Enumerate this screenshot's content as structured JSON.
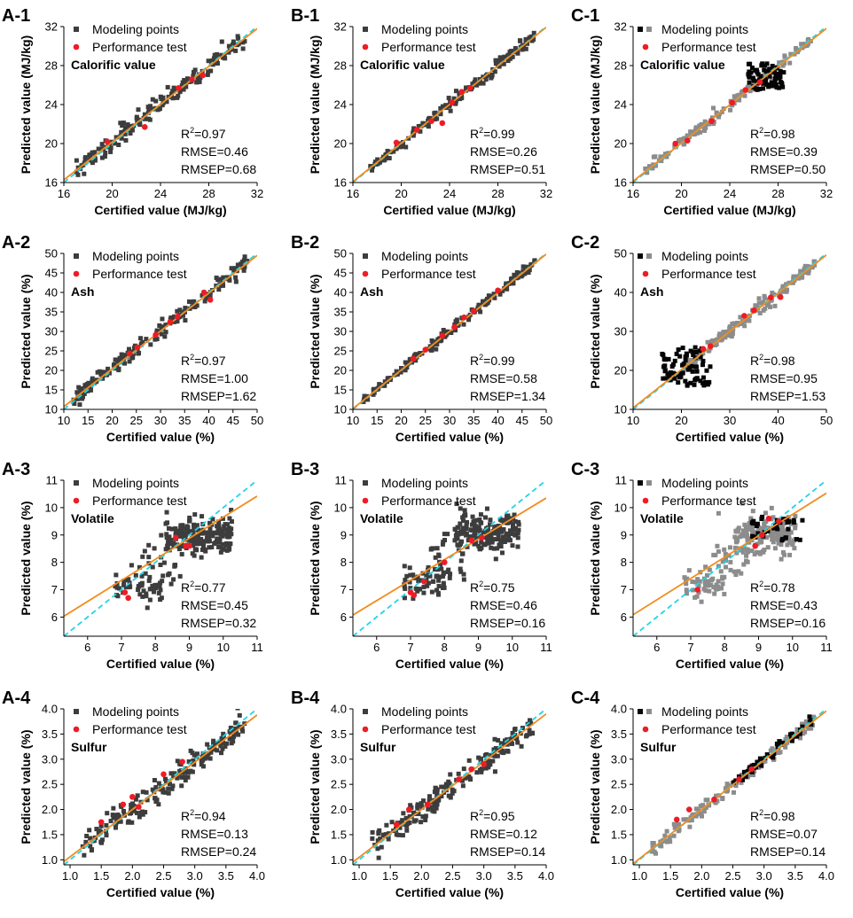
{
  "colors": {
    "model_dark": "#3d3d3d",
    "model_gray": "#8c8c8c",
    "model_black": "#050505",
    "test": "#ee1c25",
    "fit": "#f28c1f",
    "ideal": "#21d4e8"
  },
  "chart_data": [
    {
      "id": "A-1",
      "panel_label": "A-1",
      "type": "scatter",
      "title": "Calorific value",
      "xlabel": "Certified value (MJ/kg)",
      "ylabel": "Predicted value (MJ/kg)",
      "xlim": [
        16,
        32
      ],
      "ylim": [
        16,
        32
      ],
      "xticks": [
        16,
        20,
        24,
        28,
        32
      ],
      "yticks": [
        16,
        20,
        24,
        28,
        32
      ],
      "legend": {
        "modeling": "Modeling points",
        "test": "Performance test"
      },
      "stats": {
        "r2_label": "R",
        "r2_sup": "2",
        "r2_value": "=0.97",
        "rmse": "RMSE=0.46",
        "rmsep": "RMSEP=0.68"
      },
      "fit": {
        "slope": 0.97,
        "intercept": 0.75
      },
      "model_style": "dark",
      "model_points": {
        "cluster": [
          {
            "n": 170,
            "range": [
              17,
              31
            ],
            "spread": 0.5
          }
        ]
      },
      "test_points": [
        [
          19.6,
          20.2
        ],
        [
          22.7,
          21.7
        ],
        [
          25.5,
          25.7
        ],
        [
          26.6,
          26.6
        ],
        [
          27.5,
          27.0
        ]
      ]
    },
    {
      "id": "B-1",
      "panel_label": "B-1",
      "type": "scatter",
      "title": "Calorific value",
      "xlabel": "Certified value (MJ/kg)",
      "ylabel": "Predicted value (MJ/kg)",
      "xlim": [
        16,
        32
      ],
      "ylim": [
        16,
        32
      ],
      "xticks": [
        16,
        20,
        24,
        28,
        32
      ],
      "yticks": [
        16,
        20,
        24,
        28,
        32
      ],
      "legend": {
        "modeling": "Modeling points",
        "test": "Performance test"
      },
      "stats": {
        "r2_label": "R",
        "r2_sup": "2",
        "r2_value": "=0.99",
        "rmse": "RMSE=0.26",
        "rmsep": "RMSEP=0.51"
      },
      "fit": {
        "slope": 0.99,
        "intercept": 0.25
      },
      "model_style": "dark",
      "model_points": {
        "cluster": [
          {
            "n": 170,
            "range": [
              17,
              31
            ],
            "spread": 0.3
          }
        ]
      },
      "test_points": [
        [
          19.6,
          20.1
        ],
        [
          21.3,
          21.4
        ],
        [
          22.5,
          22.3
        ],
        [
          23.4,
          22.1
        ],
        [
          24.2,
          24.2
        ],
        [
          25.0,
          25.3
        ],
        [
          25.7,
          25.7
        ]
      ]
    },
    {
      "id": "C-1",
      "panel_label": "C-1",
      "type": "scatter",
      "title": "Calorific value",
      "xlabel": "Certified value (MJ/kg)",
      "ylabel": "Predicted value (MJ/kg)",
      "xlim": [
        16,
        32
      ],
      "ylim": [
        16,
        32
      ],
      "xticks": [
        16,
        20,
        24,
        28,
        32
      ],
      "yticks": [
        16,
        20,
        24,
        28,
        32
      ],
      "legend": {
        "modeling": "Modeling points",
        "test": "Performance test"
      },
      "stats": {
        "r2_label": "R",
        "r2_sup": "2",
        "r2_value": "=0.98",
        "rmse": "RMSE=0.39",
        "rmsep": "RMSEP=0.50"
      },
      "fit": {
        "slope": 0.98,
        "intercept": 0.45
      },
      "model_style": "gray-black",
      "model_points": {
        "cluster": [
          {
            "n": 150,
            "range": [
              17,
              31
            ],
            "spread": 0.3
          }
        ],
        "black": {
          "n": 70,
          "xrange": [
            25.5,
            28.5
          ],
          "yrange": [
            25.5,
            28.2
          ]
        }
      },
      "test_points": [
        [
          19.5,
          20.0
        ],
        [
          20.5,
          20.3
        ],
        [
          22.5,
          22.3
        ],
        [
          24.2,
          24.2
        ],
        [
          25.3,
          25.5
        ],
        [
          26.5,
          26.3
        ]
      ]
    },
    {
      "id": "A-2",
      "panel_label": "A-2",
      "type": "scatter",
      "title": "Ash",
      "xlabel": "Certified value (%)",
      "ylabel": "Predicted value (%)",
      "xlim": [
        10,
        50
      ],
      "ylim": [
        10,
        50
      ],
      "xticks": [
        10,
        15,
        20,
        25,
        30,
        35,
        40,
        45,
        50
      ],
      "yticks": [
        10,
        15,
        20,
        25,
        30,
        35,
        40,
        45,
        50
      ],
      "legend": {
        "modeling": "Modeling points",
        "test": "Performance test"
      },
      "stats": {
        "r2_label": "R",
        "r2_sup": "2",
        "r2_value": "=0.97",
        "rmse": "RMSE=1.00",
        "rmsep": "RMSEP=1.62"
      },
      "fit": {
        "slope": 0.97,
        "intercept": 1.0
      },
      "model_style": "dark",
      "model_points": {
        "cluster": [
          {
            "n": 180,
            "range": [
              12,
              48
            ],
            "spread": 1.1
          }
        ]
      },
      "test_points": [
        [
          23.6,
          24.3
        ],
        [
          25.2,
          25.9
        ],
        [
          29.0,
          29.1
        ],
        [
          32.0,
          32.4
        ],
        [
          33.5,
          33.8
        ],
        [
          39.0,
          40.0
        ],
        [
          40.3,
          38.1
        ]
      ]
    },
    {
      "id": "B-2",
      "panel_label": "B-2",
      "type": "scatter",
      "title": "Ash",
      "xlabel": "Certified value (%)",
      "ylabel": "Predicted value (%)",
      "xlim": [
        10,
        50
      ],
      "ylim": [
        10,
        50
      ],
      "xticks": [
        10,
        15,
        20,
        25,
        30,
        35,
        40,
        45,
        50
      ],
      "yticks": [
        10,
        15,
        20,
        25,
        30,
        35,
        40,
        45,
        50
      ],
      "legend": {
        "modeling": "Modeling points",
        "test": "Performance test"
      },
      "stats": {
        "r2_label": "R",
        "r2_sup": "2",
        "r2_value": "=0.99",
        "rmse": "RMSE=0.58",
        "rmsep": "RMSEP=1.34"
      },
      "fit": {
        "slope": 0.99,
        "intercept": 0.3
      },
      "model_style": "dark",
      "model_points": {
        "cluster": [
          {
            "n": 180,
            "range": [
              12,
              48
            ],
            "spread": 0.6
          }
        ]
      },
      "test_points": [
        [
          22.5,
          23.0
        ],
        [
          25.0,
          25.3
        ],
        [
          28.5,
          28.9
        ],
        [
          31.0,
          31.1
        ],
        [
          33.0,
          33.6
        ],
        [
          35.0,
          35.2
        ],
        [
          40.0,
          40.5
        ]
      ]
    },
    {
      "id": "C-2",
      "panel_label": "C-2",
      "type": "scatter",
      "title": "Ash",
      "xlabel": "Certified value (%)",
      "ylabel": "Predicted value (%)",
      "xlim": [
        10,
        50
      ],
      "ylim": [
        10,
        50
      ],
      "xticks": [
        10,
        20,
        30,
        40,
        50
      ],
      "yticks": [
        10,
        20,
        30,
        40,
        50
      ],
      "legend": {
        "modeling": "Modeling points",
        "test": "Performance test"
      },
      "stats": {
        "r2_label": "R",
        "r2_sup": "2",
        "r2_value": "=0.98",
        "rmse": "RMSE=0.95",
        "rmsep": "RMSEP=1.53"
      },
      "fit": {
        "slope": 0.98,
        "intercept": 0.6
      },
      "model_style": "gray-black",
      "model_points": {
        "cluster": [
          {
            "n": 170,
            "range": [
              20,
              48
            ],
            "spread": 0.8
          }
        ],
        "black": {
          "n": 80,
          "xrange": [
            16,
            26
          ],
          "yrange": [
            16,
            26
          ]
        }
      },
      "test_points": [
        [
          24.5,
          25.5
        ],
        [
          26.0,
          26.2
        ],
        [
          33.0,
          34.0
        ],
        [
          35.0,
          35.4
        ],
        [
          38.5,
          38.7
        ],
        [
          40.5,
          38.8
        ]
      ]
    },
    {
      "id": "A-3",
      "panel_label": "A-3",
      "type": "scatter",
      "title": "Volatile",
      "xlabel": "Certified value (%)",
      "ylabel": "Predicted value (%)",
      "xlim": [
        5.3,
        11
      ],
      "ylim": [
        5.3,
        11
      ],
      "xticks": [
        6,
        7,
        8,
        9,
        10,
        11
      ],
      "yticks": [
        6,
        7,
        8,
        9,
        10,
        11
      ],
      "legend": {
        "modeling": "Modeling points",
        "test": "Performance test"
      },
      "stats": {
        "r2_label": "R",
        "r2_sup": "2",
        "r2_value": "=0.77",
        "rmse": "RMSE=0.45",
        "rmsep": "RMSEP=0.32"
      },
      "fit": {
        "slope": 0.77,
        "intercept": 1.95
      },
      "model_style": "dark",
      "model_points": {
        "cluster": [
          {
            "n": 180,
            "xrange": [
              8.3,
              10.3
            ],
            "ycenter": 9.0,
            "yspread": 0.35
          },
          {
            "n": 50,
            "xrange": [
              6.8,
              8.2
            ],
            "ycenter": 7.15,
            "yspread": 0.3
          },
          {
            "n": 30,
            "xrange": [
              7.6,
              8.8
            ],
            "ycenter": 7.9,
            "yspread": 0.5
          }
        ]
      },
      "test_points": [
        [
          7.1,
          6.9
        ],
        [
          7.2,
          6.7
        ],
        [
          8.6,
          8.9
        ],
        [
          8.9,
          8.6
        ],
        [
          9.0,
          8.6
        ]
      ]
    },
    {
      "id": "B-3",
      "panel_label": "B-3",
      "type": "scatter",
      "title": "Volatile",
      "xlabel": "Certified value (%)",
      "ylabel": "Predicted value (%)",
      "xlim": [
        5.3,
        11
      ],
      "ylim": [
        5.3,
        11
      ],
      "xticks": [
        6,
        7,
        8,
        9,
        10,
        11
      ],
      "yticks": [
        6,
        7,
        8,
        9,
        10,
        11
      ],
      "legend": {
        "modeling": "Modeling points",
        "test": "Performance test"
      },
      "stats": {
        "r2_label": "R",
        "r2_sup": "2",
        "r2_value": "=0.75",
        "rmse": "RMSE=0.46",
        "rmsep": "RMSEP=0.16"
      },
      "fit": {
        "slope": 0.75,
        "intercept": 2.1
      },
      "model_style": "dark",
      "model_points": {
        "cluster": [
          {
            "n": 180,
            "xrange": [
              8.3,
              10.2
            ],
            "ycenter": 9.1,
            "yspread": 0.35
          },
          {
            "n": 50,
            "xrange": [
              6.8,
              8.0
            ],
            "ycenter": 7.25,
            "yspread": 0.3
          },
          {
            "n": 30,
            "xrange": [
              7.6,
              8.6
            ],
            "ycenter": 8.0,
            "yspread": 0.5
          }
        ]
      },
      "test_points": [
        [
          7.0,
          6.9
        ],
        [
          7.1,
          6.8
        ],
        [
          7.4,
          7.3
        ],
        [
          8.0,
          8.0
        ],
        [
          8.8,
          8.8
        ],
        [
          9.1,
          8.9
        ]
      ]
    },
    {
      "id": "C-3",
      "panel_label": "C-3",
      "type": "scatter",
      "title": "Volatile",
      "xlabel": "Certified value (%)",
      "ylabel": "Predicted value (%)",
      "xlim": [
        5.3,
        11
      ],
      "ylim": [
        5.3,
        11
      ],
      "xticks": [
        6,
        7,
        8,
        9,
        10,
        11
      ],
      "yticks": [
        6,
        7,
        8,
        9,
        10,
        11
      ],
      "legend": {
        "modeling": "Modeling points",
        "test": "Performance test"
      },
      "stats": {
        "r2_label": "R",
        "r2_sup": "2",
        "r2_value": "=0.78",
        "rmse": "RMSE=0.43",
        "rmsep": "RMSEP=0.16"
      },
      "fit": {
        "slope": 0.78,
        "intercept": 1.95
      },
      "model_style": "gray-black",
      "model_points": {
        "cluster": [
          {
            "n": 150,
            "xrange": [
              8.3,
              10.1
            ],
            "ycenter": 9.0,
            "yspread": 0.35
          },
          {
            "n": 50,
            "xrange": [
              6.8,
              8.0
            ],
            "ycenter": 7.2,
            "yspread": 0.3
          },
          {
            "n": 30,
            "xrange": [
              7.6,
              8.8
            ],
            "ycenter": 8.0,
            "yspread": 0.5
          }
        ],
        "black": {
          "n": 35,
          "xrange": [
            8.8,
            10.3
          ],
          "yrange": [
            8.8,
            9.7
          ]
        }
      },
      "test_points": [
        [
          7.2,
          7.0
        ],
        [
          8.9,
          8.6
        ],
        [
          9.1,
          9.0
        ],
        [
          9.3,
          9.6
        ],
        [
          9.6,
          9.5
        ]
      ]
    },
    {
      "id": "A-4",
      "panel_label": "A-4",
      "type": "scatter",
      "title": "Sulfur",
      "xlabel": "Certified value (%)",
      "ylabel": "Predicted value (%)",
      "xlim": [
        0.9,
        4.0
      ],
      "ylim": [
        0.9,
        4.0
      ],
      "xticks": [
        1.0,
        1.5,
        2.0,
        2.5,
        3.0,
        3.5,
        4.0
      ],
      "yticks": [
        1.0,
        1.5,
        2.0,
        2.5,
        3.0,
        3.5,
        4.0
      ],
      "legend": {
        "modeling": "Modeling points",
        "test": "Performance test"
      },
      "stats": {
        "r2_label": "R",
        "r2_sup": "2",
        "r2_value": "=0.94",
        "rmse": "RMSE=0.13",
        "rmsep": "RMSEP=0.24"
      },
      "fit": {
        "slope": 0.94,
        "intercept": 0.12
      },
      "model_style": "dark",
      "model_points": {
        "cluster": [
          {
            "n": 180,
            "range": [
              1.2,
              3.8
            ],
            "spread": 0.13
          }
        ]
      },
      "test_points": [
        [
          1.5,
          1.75
        ],
        [
          1.85,
          2.1
        ],
        [
          2.0,
          2.25
        ],
        [
          2.1,
          2.05
        ],
        [
          2.5,
          2.7
        ],
        [
          2.8,
          2.95
        ]
      ]
    },
    {
      "id": "B-4",
      "panel_label": "B-4",
      "type": "scatter",
      "title": "Sulfur",
      "xlabel": "Certified value (%)",
      "ylabel": "Predicted value (%)",
      "xlim": [
        0.9,
        4.0
      ],
      "ylim": [
        0.9,
        4.0
      ],
      "xticks": [
        1.0,
        1.5,
        2.0,
        2.5,
        3.0,
        3.5,
        4.0
      ],
      "yticks": [
        1.0,
        1.5,
        2.0,
        2.5,
        3.0,
        3.5,
        4.0
      ],
      "legend": {
        "modeling": "Modeling points",
        "test": "Performance test"
      },
      "stats": {
        "r2_label": "R",
        "r2_sup": "2",
        "r2_value": "=0.95",
        "rmse": "RMSE=0.12",
        "rmsep": "RMSEP=0.14"
      },
      "fit": {
        "slope": 0.95,
        "intercept": 0.1
      },
      "model_style": "dark",
      "model_points": {
        "cluster": [
          {
            "n": 180,
            "range": [
              1.2,
              3.8
            ],
            "spread": 0.12
          }
        ]
      },
      "test_points": [
        [
          1.6,
          1.7
        ],
        [
          1.8,
          2.0
        ],
        [
          2.1,
          2.1
        ],
        [
          2.6,
          2.6
        ],
        [
          2.8,
          2.8
        ],
        [
          3.0,
          2.9
        ]
      ]
    },
    {
      "id": "C-4",
      "panel_label": "C-4",
      "type": "scatter",
      "title": "Sulfur",
      "xlabel": "Certified value (%)",
      "ylabel": "Predicted value (%)",
      "xlim": [
        0.9,
        4.0
      ],
      "ylim": [
        0.9,
        4.0
      ],
      "xticks": [
        1.0,
        1.5,
        2.0,
        2.5,
        3.0,
        3.5,
        4.0
      ],
      "yticks": [
        1.0,
        1.5,
        2.0,
        2.5,
        3.0,
        3.5,
        4.0
      ],
      "legend": {
        "modeling": "Modeling points",
        "test": "Performance test"
      },
      "stats": {
        "r2_label": "R",
        "r2_sup": "2",
        "r2_value": "=0.98",
        "rmse": "RMSE=0.07",
        "rmsep": "RMSEP=0.14"
      },
      "fit": {
        "slope": 0.98,
        "intercept": 0.04
      },
      "model_style": "gray-black",
      "model_points": {
        "cluster": [
          {
            "n": 150,
            "range": [
              1.2,
              3.8
            ],
            "spread": 0.07
          }
        ],
        "black": {
          "n": 50,
          "xrange": [
            2.5,
            3.8
          ],
          "yrange": [
            2.5,
            3.8
          ],
          "diag": true
        }
      },
      "test_points": [
        [
          1.6,
          1.8
        ],
        [
          1.8,
          2.0
        ],
        [
          2.2,
          2.2
        ],
        [
          2.6,
          2.6
        ],
        [
          2.8,
          2.8
        ]
      ]
    }
  ]
}
